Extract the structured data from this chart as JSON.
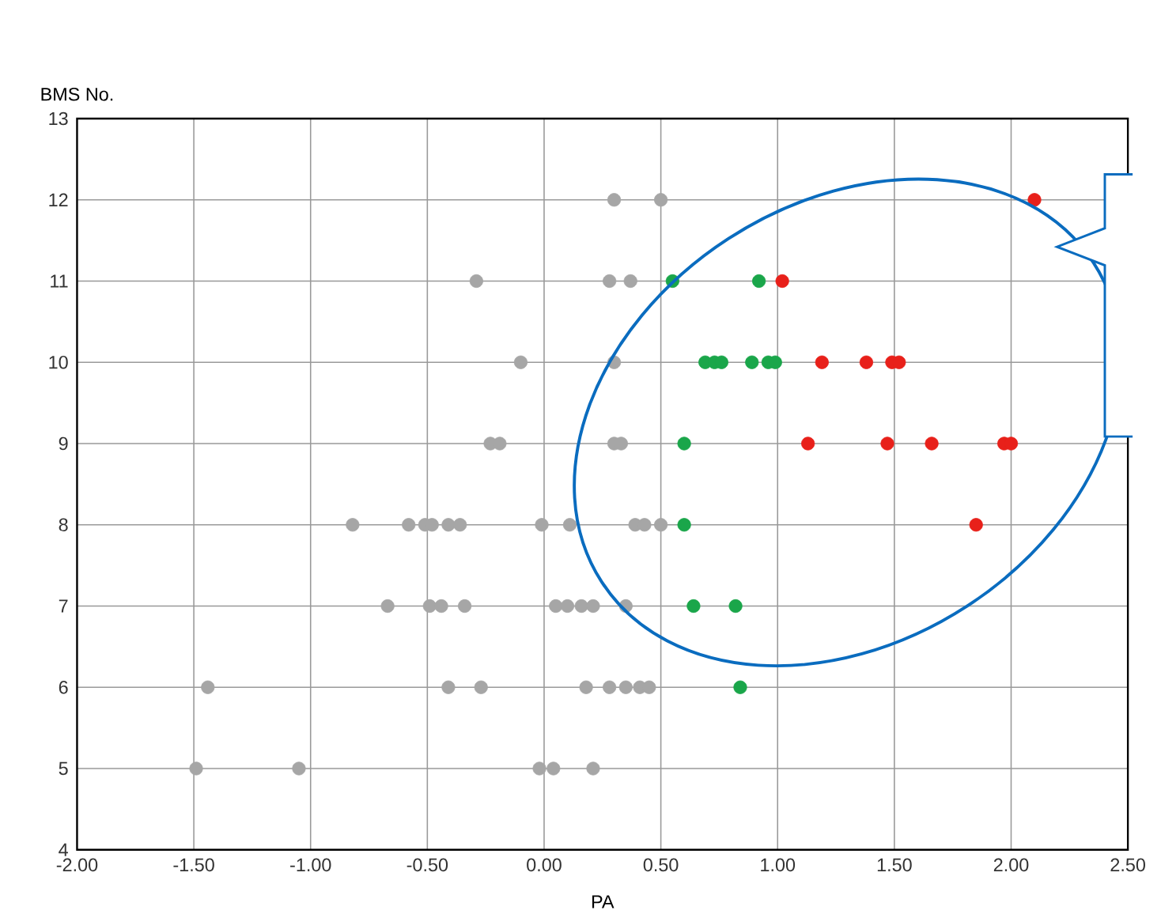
{
  "chart_data": {
    "type": "scatter",
    "xlabel": "PA",
    "ylabel": "BMS No.",
    "xlim": [
      -2,
      2.5
    ],
    "ylim": [
      4,
      13
    ],
    "xticks": [
      {
        "value": -2,
        "label": "-2.00"
      },
      {
        "value": -1.5,
        "label": "-1.50"
      },
      {
        "value": -1,
        "label": "-1.00"
      },
      {
        "value": -0.5,
        "label": "-0.50"
      },
      {
        "value": 0,
        "label": "0.00"
      },
      {
        "value": 0.5,
        "label": "0.50"
      },
      {
        "value": 1,
        "label": "1.00"
      },
      {
        "value": 1.5,
        "label": "1.50"
      },
      {
        "value": 2,
        "label": "2.00"
      },
      {
        "value": 2.5,
        "label": "2.50"
      }
    ],
    "yticks": [
      4,
      5,
      6,
      7,
      8,
      9,
      10,
      11,
      12,
      13
    ],
    "grid": true,
    "marker": "circle",
    "series": [
      {
        "color": "#a6a6a6",
        "x": [
          0.3,
          0.5,
          -0.29,
          0.28,
          0.37,
          -0.1,
          0.3,
          -0.23,
          -0.19,
          0.3,
          0.33,
          -0.82,
          -0.58,
          -0.51,
          -0.48,
          -0.41,
          -0.36,
          -0.01,
          0.11,
          0.39,
          0.43,
          0.5,
          -0.67,
          -0.49,
          -0.44,
          -0.34,
          0.05,
          0.1,
          0.16,
          0.21,
          0.35,
          -1.44,
          -0.41,
          -0.27,
          0.18,
          0.28,
          0.35,
          0.41,
          0.45,
          -1.49,
          -1.05,
          -0.02,
          0.04,
          0.21
        ],
        "values": [
          12,
          12,
          11,
          11,
          11,
          10,
          10,
          9,
          9,
          9,
          9,
          8,
          8,
          8,
          8,
          8,
          8,
          8,
          8,
          8,
          8,
          8,
          7,
          7,
          7,
          7,
          7,
          7,
          7,
          7,
          7,
          6,
          6,
          6,
          6,
          6,
          6,
          6,
          6,
          5,
          5,
          5,
          5,
          5
        ]
      },
      {
        "color": "#1aa64a",
        "x": [
          0.55,
          0.92,
          0.69,
          0.73,
          0.76,
          0.89,
          0.96,
          0.99,
          0.6,
          0.6,
          0.64,
          0.82,
          0.84
        ],
        "values": [
          11,
          11,
          10,
          10,
          10,
          10,
          10,
          10,
          9,
          8,
          7,
          7,
          6
        ]
      },
      {
        "color": "#e8201a",
        "x": [
          2.1,
          1.02,
          1.19,
          1.38,
          1.49,
          1.52,
          1.13,
          1.47,
          1.66,
          1.97,
          2.0,
          1.85
        ],
        "values": [
          12,
          11,
          10,
          10,
          10,
          10,
          9,
          9,
          9,
          9,
          9,
          8
        ]
      }
    ]
  }
}
